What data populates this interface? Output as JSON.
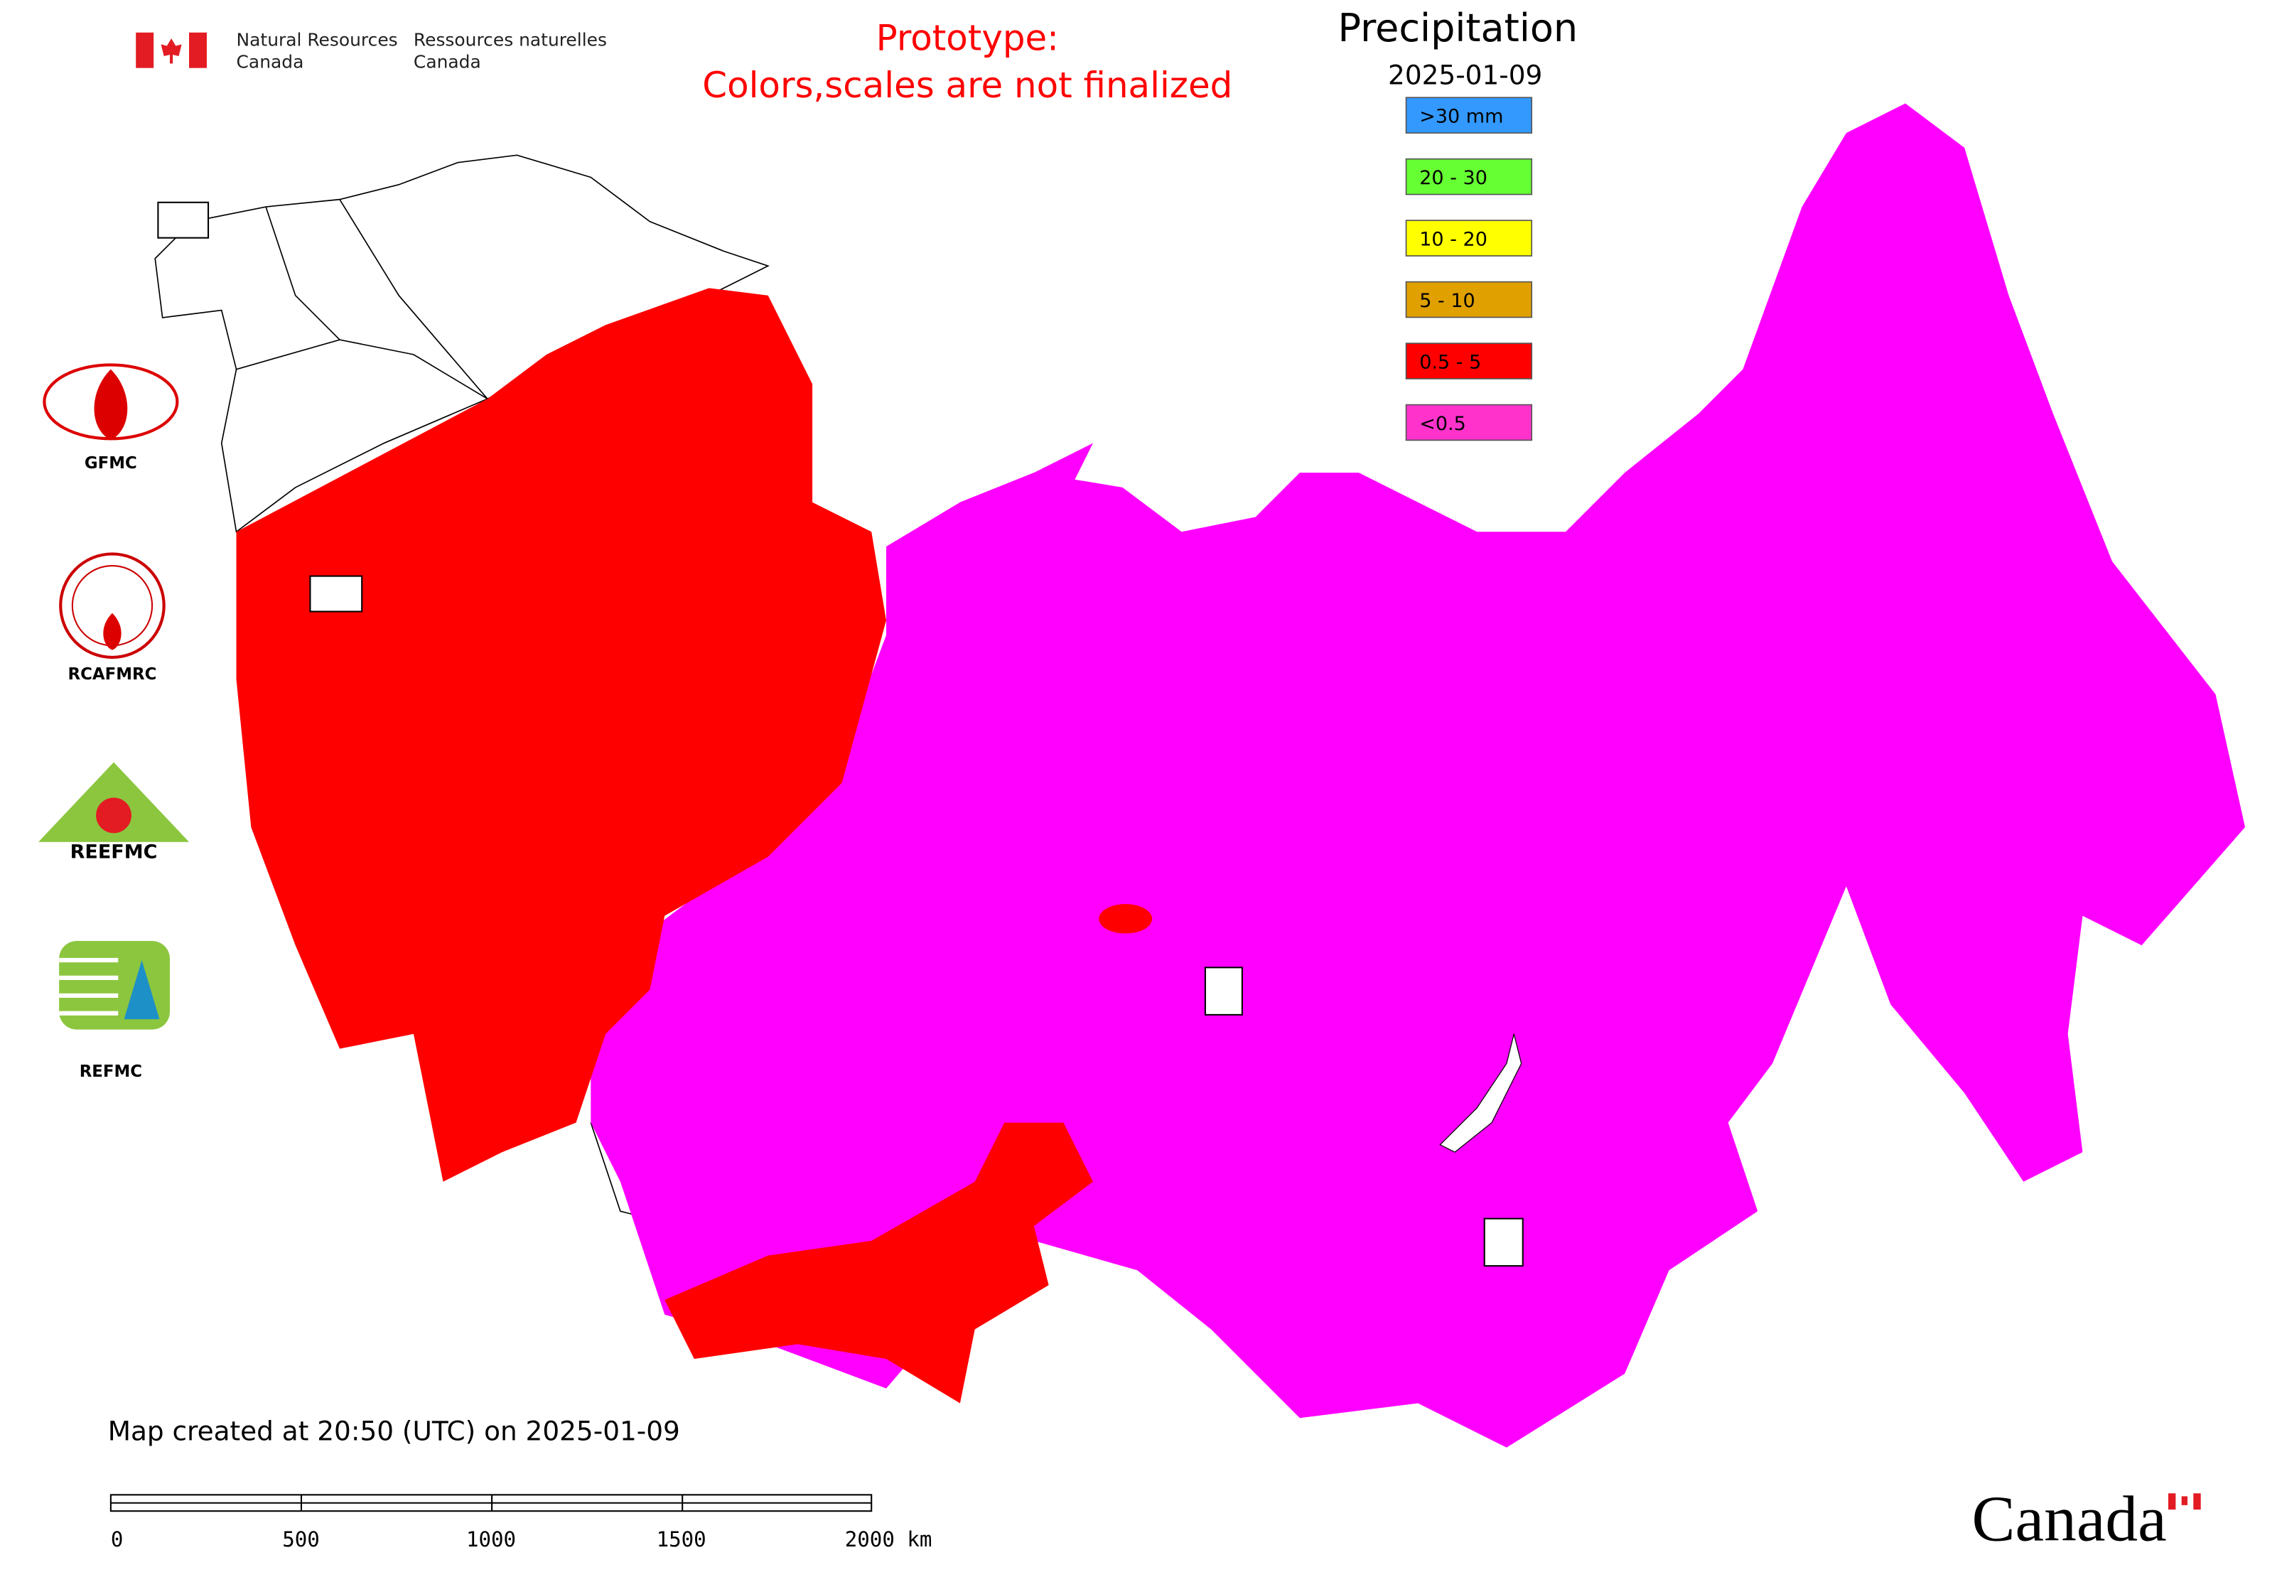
{
  "header": {
    "agency_en_line1": "Natural Resources",
    "agency_en_line2": "Canada",
    "agency_fr_line1": "Ressources naturelles",
    "agency_fr_line2": "Canada"
  },
  "notice": {
    "line1": "Prototype:",
    "line2": "Colors,scales are not finalized"
  },
  "legend": {
    "title": "Precipitation",
    "date": "2025-01-09",
    "items": [
      {
        "label": ">30 mm",
        "color": "#3399ff"
      },
      {
        "label": "20 - 30",
        "color": "#66ff33"
      },
      {
        "label": "10 - 20",
        "color": "#ffff00"
      },
      {
        "label": "5 - 10",
        "color": "#e0a000"
      },
      {
        "label": "0.5 - 5",
        "color": "#ff0000"
      },
      {
        "label": "<0.5",
        "color": "#ff33cc"
      }
    ]
  },
  "logos": [
    {
      "label": "GFMC"
    },
    {
      "label": "RCAFMRC"
    },
    {
      "label": "REFMC"
    }
  ],
  "footer": {
    "created": "Map created at 20:50 (UTC) on 2025-01-09",
    "scale_labels": [
      "0",
      "500",
      "1000",
      "1500",
      "2000 km"
    ],
    "wordmark": "Canada"
  }
}
